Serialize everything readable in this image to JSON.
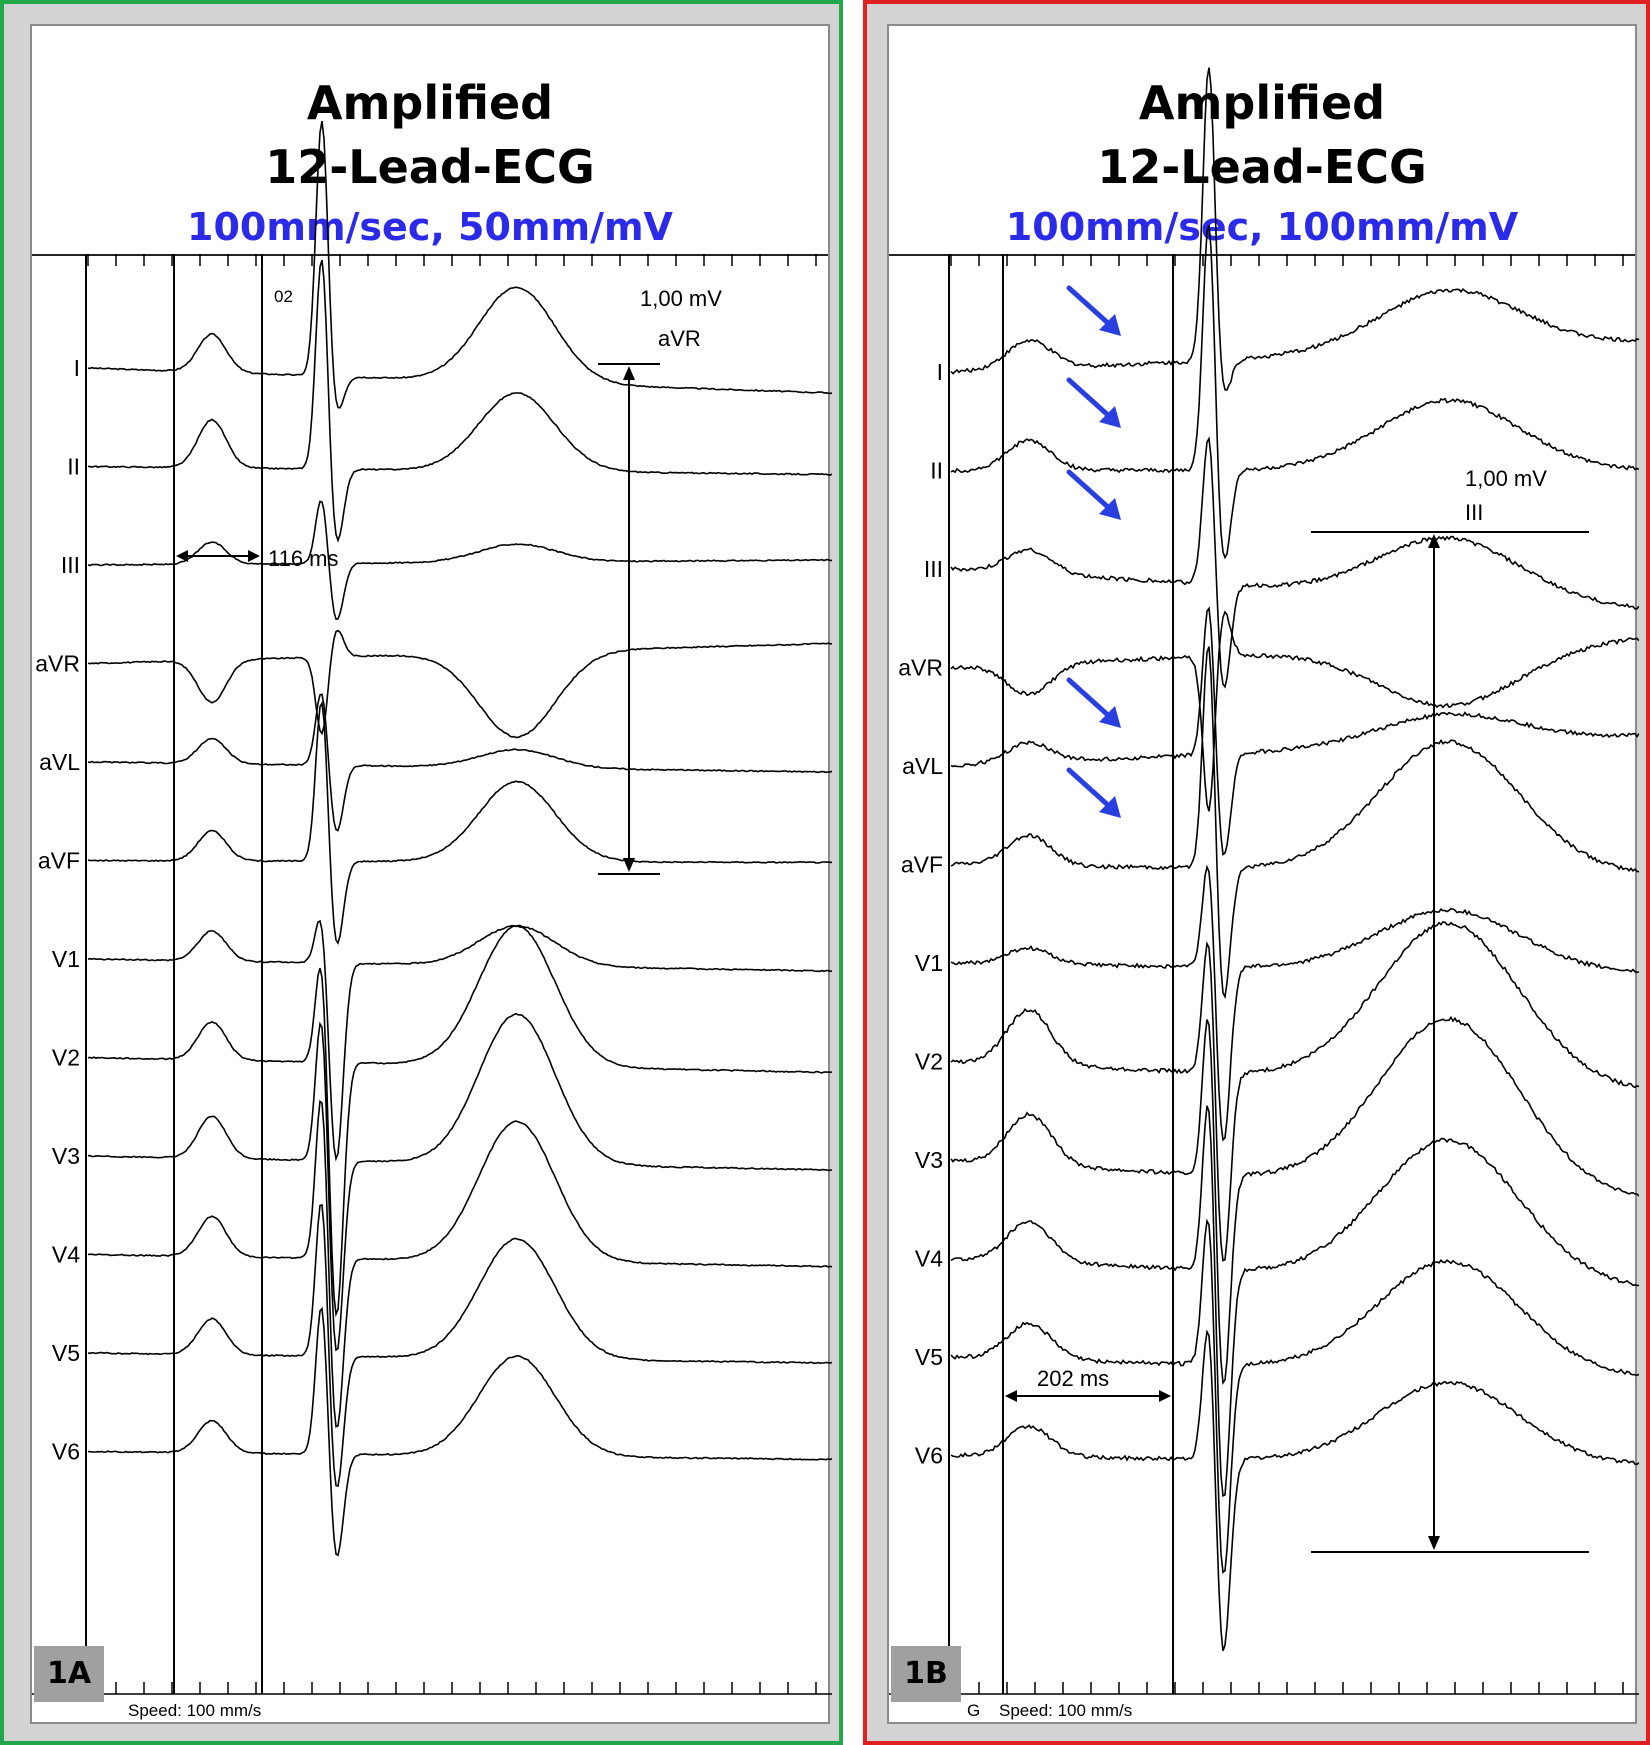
{
  "panels": [
    {
      "id": "1A",
      "border_color": "#22a84a",
      "title_line1": "Amplified",
      "title_line2": "12-Lead-ECG",
      "subtitle": "100mm/sec, 50mm/mV",
      "speed_label": "Speed: 100 mm/s",
      "marker_02": "02",
      "interval_label": "116 ms",
      "calibration_value": "1,00 mV",
      "calibration_lead": "aVR",
      "leads": [
        "I",
        "II",
        "III",
        "aVR",
        "aVL",
        "aVF",
        "V1",
        "V2",
        "V3",
        "V4",
        "V5",
        "V6"
      ]
    },
    {
      "id": "1B",
      "border_color": "#e02020",
      "title_line1": "Amplified",
      "title_line2": "12-Lead-ECG",
      "subtitle": "100mm/sec, 100mm/mV",
      "speed_label": "Speed: 100 mm/s",
      "speed_prefix": "G",
      "interval_label": "202 ms",
      "calibration_value": "1,00 mV",
      "calibration_lead": "III",
      "arrow_color": "#2a3fe0",
      "arrow_leads": [
        "I",
        "II",
        "III",
        "aVL",
        "aVF"
      ],
      "leads": [
        "I",
        "II",
        "III",
        "aVR",
        "aVL",
        "aVF",
        "V1",
        "V2",
        "V3",
        "V4",
        "V5",
        "V6"
      ]
    }
  ],
  "colors": {
    "title": "#000000",
    "subtitle": "#2a2ae8",
    "trace": "#000000",
    "badge": "#a0a0a0"
  }
}
